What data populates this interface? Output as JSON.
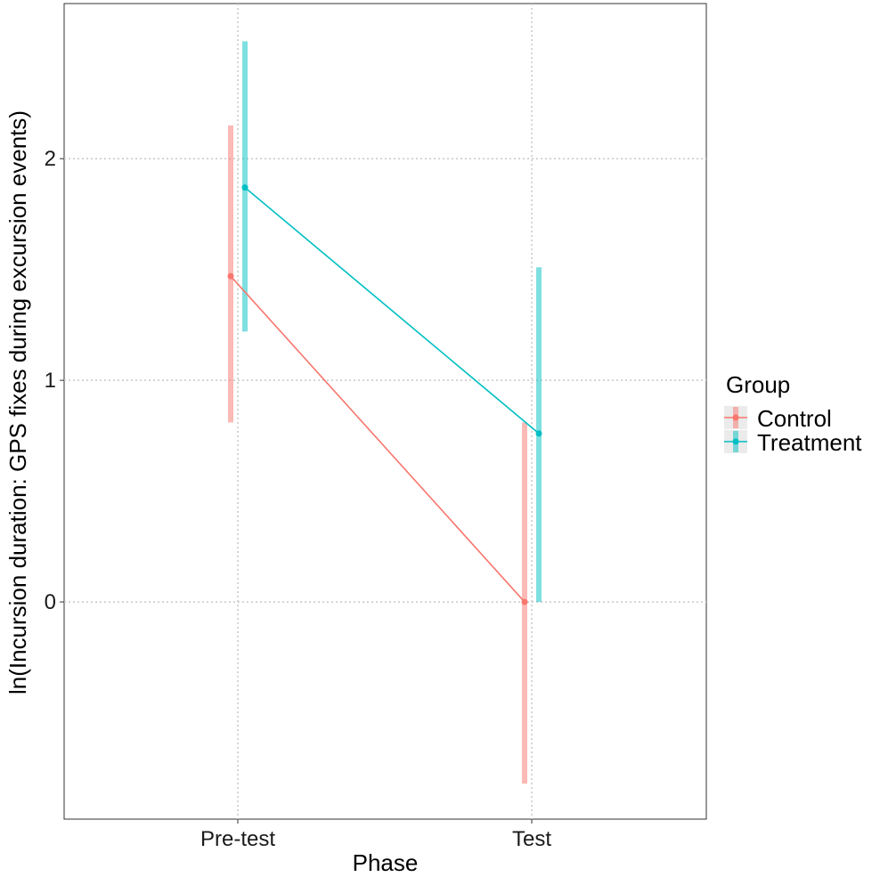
{
  "chart_data": {
    "type": "line",
    "xlabel": "Phase",
    "ylabel": "ln(Incursion duration: GPS fixes during excursion events)",
    "categories": [
      "Pre-test",
      "Test"
    ],
    "yticks": [
      0,
      1,
      2
    ],
    "ylim": [
      -0.98,
      2.7
    ],
    "grid": true,
    "grid_style": "dotted",
    "legend_title": "Group",
    "legend_position": "right",
    "series": [
      {
        "name": "Control",
        "color": "#F8766D",
        "values": [
          1.47,
          0.0
        ],
        "lower": [
          0.81,
          -0.82
        ],
        "upper": [
          2.15,
          0.81
        ]
      },
      {
        "name": "Treatment",
        "color": "#00BFC4",
        "values": [
          1.87,
          0.76
        ],
        "lower": [
          1.22,
          0.0
        ],
        "upper": [
          2.53,
          1.51
        ]
      }
    ]
  }
}
